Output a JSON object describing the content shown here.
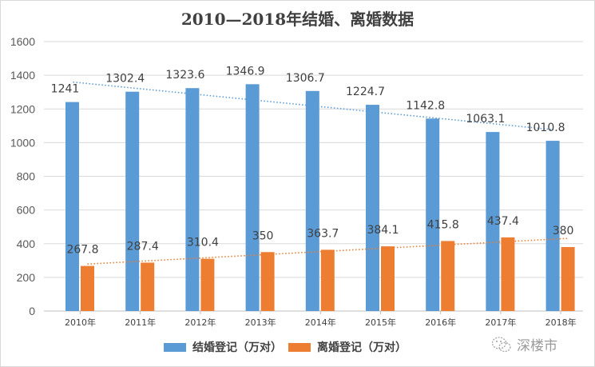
{
  "chart_data": {
    "type": "bar",
    "title": "2010—2018年结婚、离婚数据",
    "xlabel": "",
    "ylabel": "",
    "ylim": [
      0,
      1600
    ],
    "yticks": [
      0,
      200,
      400,
      600,
      800,
      1000,
      1200,
      1400,
      1600
    ],
    "grid": true,
    "legend_position": "bottom",
    "categories": [
      "2010年",
      "2011年",
      "2012年",
      "2013年",
      "2014年",
      "2015年",
      "2016年",
      "2017年",
      "2018年"
    ],
    "series": [
      {
        "name": "结婚登记（万对）",
        "color": "#5b9bd5",
        "values": [
          1241,
          1302.4,
          1323.6,
          1346.9,
          1306.7,
          1224.7,
          1142.8,
          1063.1,
          1010.8
        ],
        "labels": [
          "1241",
          "1302.4",
          "1323.6",
          "1346.9",
          "1306.7",
          "1224.7",
          "1142.8",
          "1063.1",
          "1010.8"
        ],
        "trendline": "linear",
        "trendline_color": "#5b9bd5"
      },
      {
        "name": "离婚登记（万对）",
        "color": "#ed7d31",
        "values": [
          267.8,
          287.4,
          310.4,
          350,
          363.7,
          384.1,
          415.8,
          437.4,
          380
        ],
        "labels": [
          "267.8",
          "287.4",
          "310.4",
          "350",
          "363.7",
          "384.1",
          "415.8",
          "437.4",
          "380"
        ],
        "trendline": "linear",
        "trendline_color": "#ed7d31"
      }
    ]
  },
  "legend": {
    "items": [
      {
        "label": "结婚登记（万对）",
        "color": "#5b9bd5"
      },
      {
        "label": "离婚登记（万对）",
        "color": "#ed7d31"
      }
    ]
  },
  "watermark": {
    "icon": "wechat-icon",
    "text": "深楼市"
  }
}
